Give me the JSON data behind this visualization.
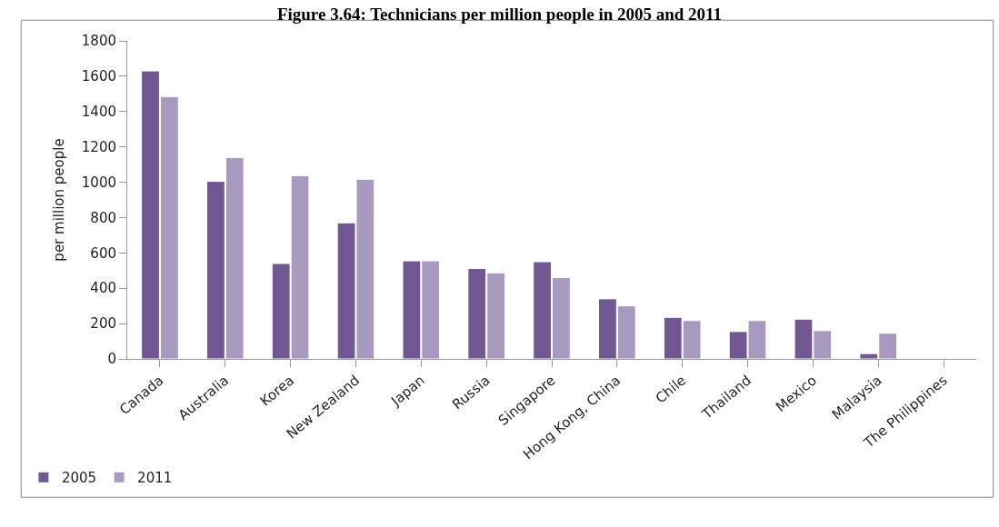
{
  "chart_data": {
    "type": "bar",
    "title": "Figure 3.64: Technicians per million people in 2005 and 2011",
    "ylabel": "per million people",
    "categories": [
      "Canada",
      "Australia",
      "Korea",
      "New Zealand",
      "Japan",
      "Russia",
      "Singapore",
      "Hong Kong, China",
      "Chile",
      "Thailand",
      "Mexico",
      "Malaysia",
      "The Philippines"
    ],
    "series": [
      {
        "name": "2005",
        "color": "#725890",
        "values": [
          1630,
          1005,
          540,
          770,
          555,
          512,
          550,
          340,
          235,
          155,
          225,
          30,
          null
        ]
      },
      {
        "name": "2011",
        "color": "#a899bf",
        "values": [
          1485,
          1140,
          1037,
          1017,
          555,
          487,
          460,
          300,
          217,
          217,
          160,
          145,
          null
        ]
      }
    ],
    "ylim": [
      0,
      1800
    ],
    "yticks": [
      0,
      200,
      400,
      600,
      800,
      1000,
      1200,
      1400,
      1600,
      1800
    ],
    "legend": "bottom left"
  }
}
